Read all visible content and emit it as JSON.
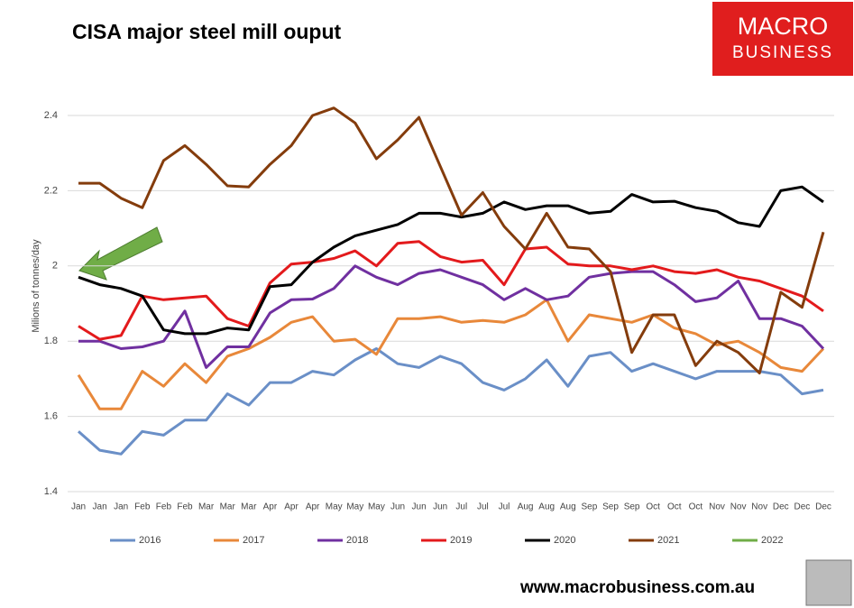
{
  "logo": {
    "line1": "MACRO",
    "line2": "BUSINESS"
  },
  "footer": "www.macrobusiness.com.au",
  "chart_data": {
    "type": "line",
    "title": "CISA major steel mill ouput",
    "y_label": "Milions of tonnes/day",
    "categories": [
      "Jan",
      "Jan",
      "Jan",
      "Feb",
      "Feb",
      "Feb",
      "Mar",
      "Mar",
      "Mar",
      "Apr",
      "Apr",
      "Apr",
      "May",
      "May",
      "May",
      "Jun",
      "Jun",
      "Jun",
      "Jul",
      "Jul",
      "Jul",
      "Aug",
      "Aug",
      "Aug",
      "Sep",
      "Sep",
      "Sep",
      "Oct",
      "Oct",
      "Oct",
      "Nov",
      "Nov",
      "Nov",
      "Dec",
      "Dec",
      "Dec"
    ],
    "ylim": [
      1.4,
      2.4
    ],
    "yticks": [
      1.4,
      1.6,
      1.8,
      2,
      2.2,
      2.4
    ],
    "grid": true,
    "legend": "bottom",
    "series": [
      {
        "name": "2016",
        "color": "#6a8fc7",
        "values": [
          1.56,
          1.51,
          1.5,
          1.56,
          1.55,
          1.59,
          1.59,
          1.66,
          1.63,
          1.69,
          1.69,
          1.72,
          1.71,
          1.75,
          1.78,
          1.74,
          1.73,
          1.76,
          1.74,
          1.69,
          1.67,
          1.7,
          1.75,
          1.68,
          1.76,
          1.77,
          1.72,
          1.74,
          1.72,
          1.7,
          1.72,
          1.72,
          1.72,
          1.71,
          1.66,
          1.67
        ]
      },
      {
        "name": "2017",
        "color": "#e8883a",
        "values": [
          1.71,
          1.62,
          1.62,
          1.72,
          1.68,
          1.74,
          1.69,
          1.76,
          1.78,
          1.81,
          1.85,
          1.865,
          1.8,
          1.805,
          1.765,
          1.86,
          1.86,
          1.865,
          1.85,
          1.855,
          1.85,
          1.87,
          1.91,
          1.8,
          1.87,
          1.86,
          1.85,
          1.87,
          1.835,
          1.82,
          1.79,
          1.8,
          1.77,
          1.73,
          1.72,
          1.78
        ]
      },
      {
        "name": "2018",
        "color": "#7030a0",
        "values": [
          1.8,
          1.8,
          1.78,
          1.785,
          1.8,
          1.88,
          1.73,
          1.785,
          1.785,
          1.875,
          1.91,
          1.912,
          1.94,
          2.0,
          1.97,
          1.95,
          1.98,
          1.99,
          1.97,
          1.95,
          1.91,
          1.94,
          1.91,
          1.92,
          1.97,
          1.98,
          1.985,
          1.985,
          1.95,
          1.905,
          1.915,
          1.96,
          1.86,
          1.86,
          1.84,
          1.78
        ]
      },
      {
        "name": "2019",
        "color": "#e31a1c",
        "values": [
          1.84,
          1.805,
          1.815,
          1.92,
          1.91,
          1.915,
          1.92,
          1.86,
          1.84,
          1.955,
          2.005,
          2.01,
          2.02,
          2.04,
          2.0,
          2.06,
          2.065,
          2.025,
          2.01,
          2.015,
          1.95,
          2.045,
          2.05,
          2.005,
          2.0,
          2.0,
          1.99,
          2.0,
          1.985,
          1.98,
          1.99,
          1.97,
          1.96,
          1.94,
          1.92,
          1.88
        ]
      },
      {
        "name": "2020",
        "color": "#000000",
        "values": [
          1.97,
          1.95,
          1.94,
          1.92,
          1.83,
          1.82,
          1.82,
          1.835,
          1.83,
          1.945,
          1.95,
          2.01,
          2.05,
          2.08,
          2.095,
          2.11,
          2.14,
          2.14,
          2.13,
          2.14,
          2.17,
          2.15,
          2.16,
          2.16,
          2.14,
          2.145,
          2.19,
          2.17,
          2.172,
          2.155,
          2.145,
          2.115,
          2.105,
          2.2,
          2.21,
          2.17
        ]
      },
      {
        "name": "2021",
        "color": "#843c0c",
        "values": [
          2.22,
          2.22,
          2.18,
          2.155,
          2.28,
          2.32,
          2.27,
          2.213,
          2.21,
          2.27,
          2.32,
          2.4,
          2.42,
          2.38,
          2.285,
          2.335,
          2.395,
          2.265,
          2.135,
          2.195,
          2.105,
          2.045,
          2.14,
          2.05,
          2.045,
          1.985,
          1.77,
          1.87,
          1.87,
          1.735,
          1.8,
          1.77,
          1.715,
          1.93,
          1.89,
          2.09
        ]
      },
      {
        "name": "2022",
        "color": "#70ad47",
        "values": [
          null,
          null,
          null,
          null,
          null,
          null,
          null,
          null,
          null,
          null,
          null,
          null,
          null,
          null,
          null,
          null,
          null,
          null,
          null,
          null,
          null,
          null,
          null,
          null,
          null,
          null,
          null,
          null,
          null,
          null,
          null,
          null,
          null,
          null,
          null,
          null
        ]
      }
    ]
  }
}
